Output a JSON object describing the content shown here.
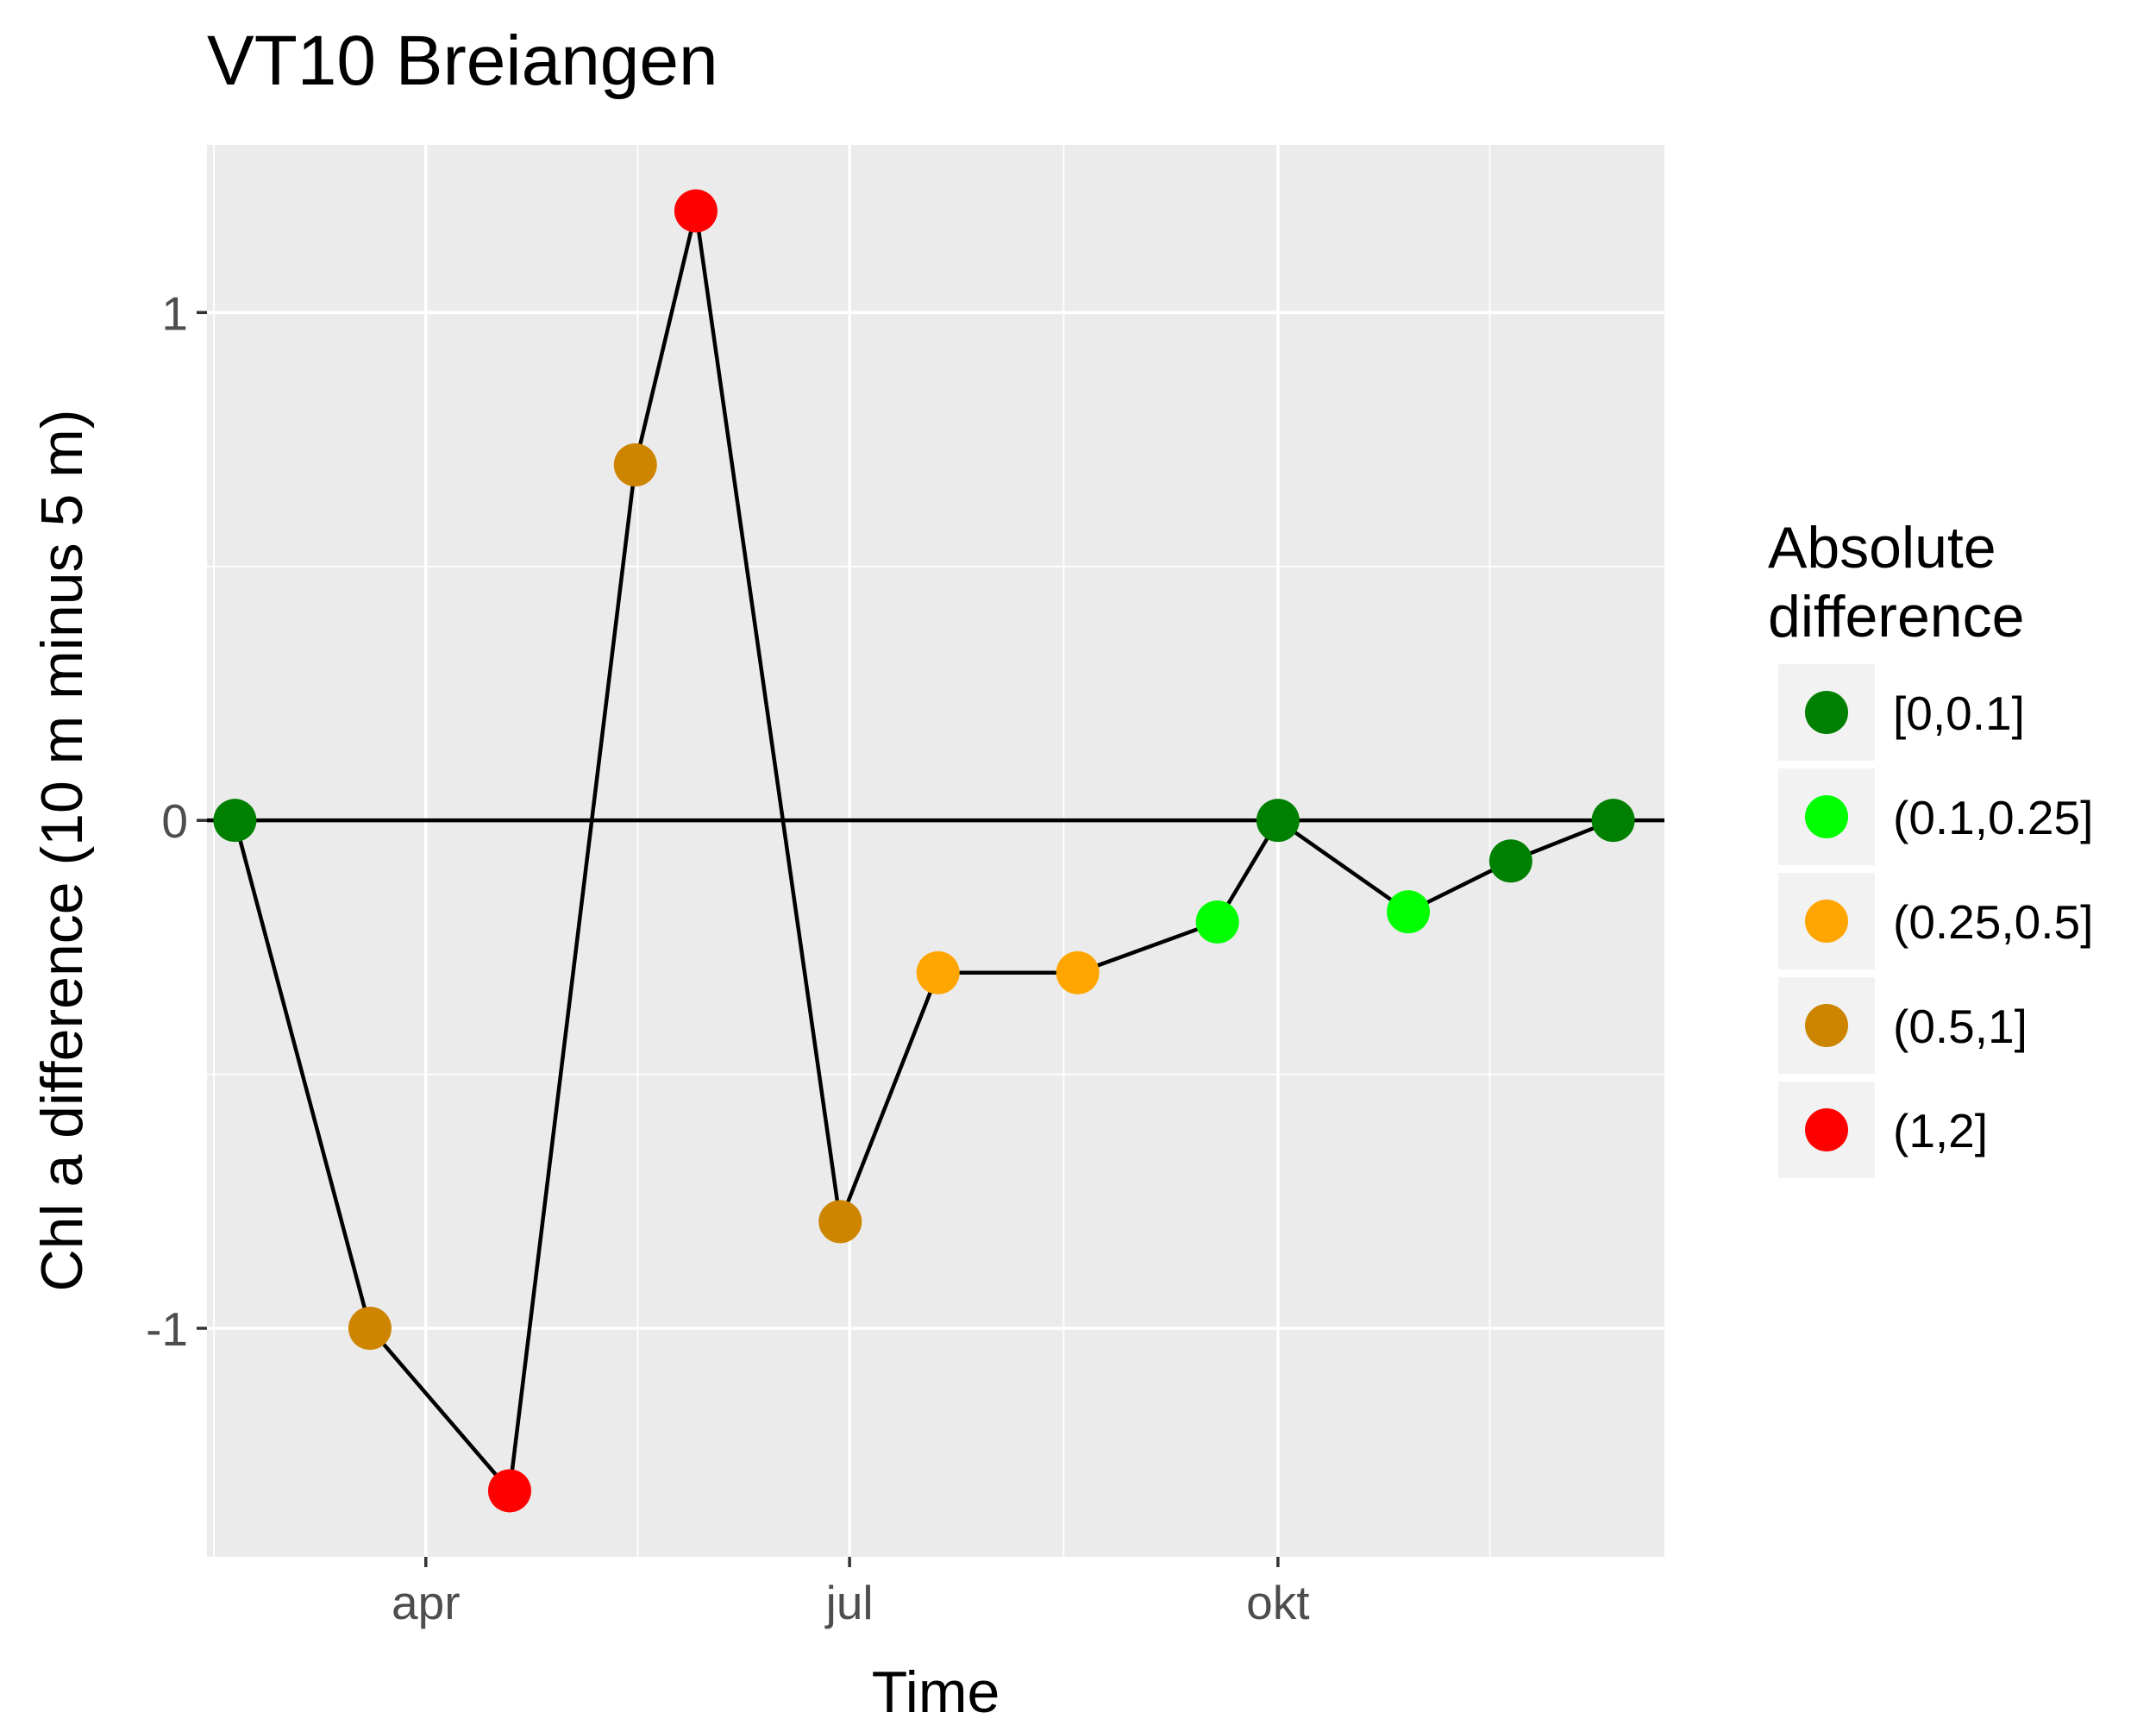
{
  "chart_data": {
    "type": "line",
    "title": "VT10 Breiangen",
    "xlabel": "Time",
    "ylabel": "Chl a difference (10 m minus 5 m)",
    "x_tick_labels": [
      "apr",
      "jul",
      "okt"
    ],
    "x_ticks": [
      "2019-04-01",
      "2019-07-01",
      "2019-10-01"
    ],
    "xlim": [
      "2019-02-13",
      "2019-12-23"
    ],
    "y_ticks": [
      -1,
      0,
      1
    ],
    "y_tick_labels": [
      "-1",
      "0",
      "1"
    ],
    "ylim": [
      -1.45,
      1.33
    ],
    "grid": true,
    "reference_line": 0,
    "legend": {
      "title": "Absolute difference",
      "placement": "right",
      "items": [
        {
          "label": "[0,0.1]",
          "color": "#008000"
        },
        {
          "label": "(0.1,0.25]",
          "color": "#00ff00"
        },
        {
          "label": "(0.25,0.5]",
          "color": "#ffa500"
        },
        {
          "label": "(0.5,1]",
          "color": "#cd8500"
        },
        {
          "label": "(1,2]",
          "color": "#ff0000"
        }
      ]
    },
    "points": [
      {
        "x": "2019-02-19",
        "y": 0.0,
        "category": "[0,0.1]"
      },
      {
        "x": "2019-03-20",
        "y": -1.0,
        "category": "(0.5,1]"
      },
      {
        "x": "2019-04-19",
        "y": -1.32,
        "category": "(1,2]"
      },
      {
        "x": "2019-05-16",
        "y": 0.7,
        "category": "(0.5,1]"
      },
      {
        "x": "2019-05-29",
        "y": 1.2,
        "category": "(1,2]"
      },
      {
        "x": "2019-06-29",
        "y": -0.79,
        "category": "(0.5,1]"
      },
      {
        "x": "2019-07-20",
        "y": -0.3,
        "category": "(0.25,0.5]"
      },
      {
        "x": "2019-08-19",
        "y": -0.3,
        "category": "(0.25,0.5]"
      },
      {
        "x": "2019-09-18",
        "y": -0.2,
        "category": "(0.1,0.25]"
      },
      {
        "x": "2019-10-01",
        "y": 0.0,
        "category": "[0,0.1]"
      },
      {
        "x": "2019-10-29",
        "y": -0.18,
        "category": "(0.1,0.25]"
      },
      {
        "x": "2019-11-20",
        "y": -0.08,
        "category": "[0,0.1]"
      },
      {
        "x": "2019-12-12",
        "y": 0.0,
        "category": "[0,0.1]"
      }
    ]
  }
}
